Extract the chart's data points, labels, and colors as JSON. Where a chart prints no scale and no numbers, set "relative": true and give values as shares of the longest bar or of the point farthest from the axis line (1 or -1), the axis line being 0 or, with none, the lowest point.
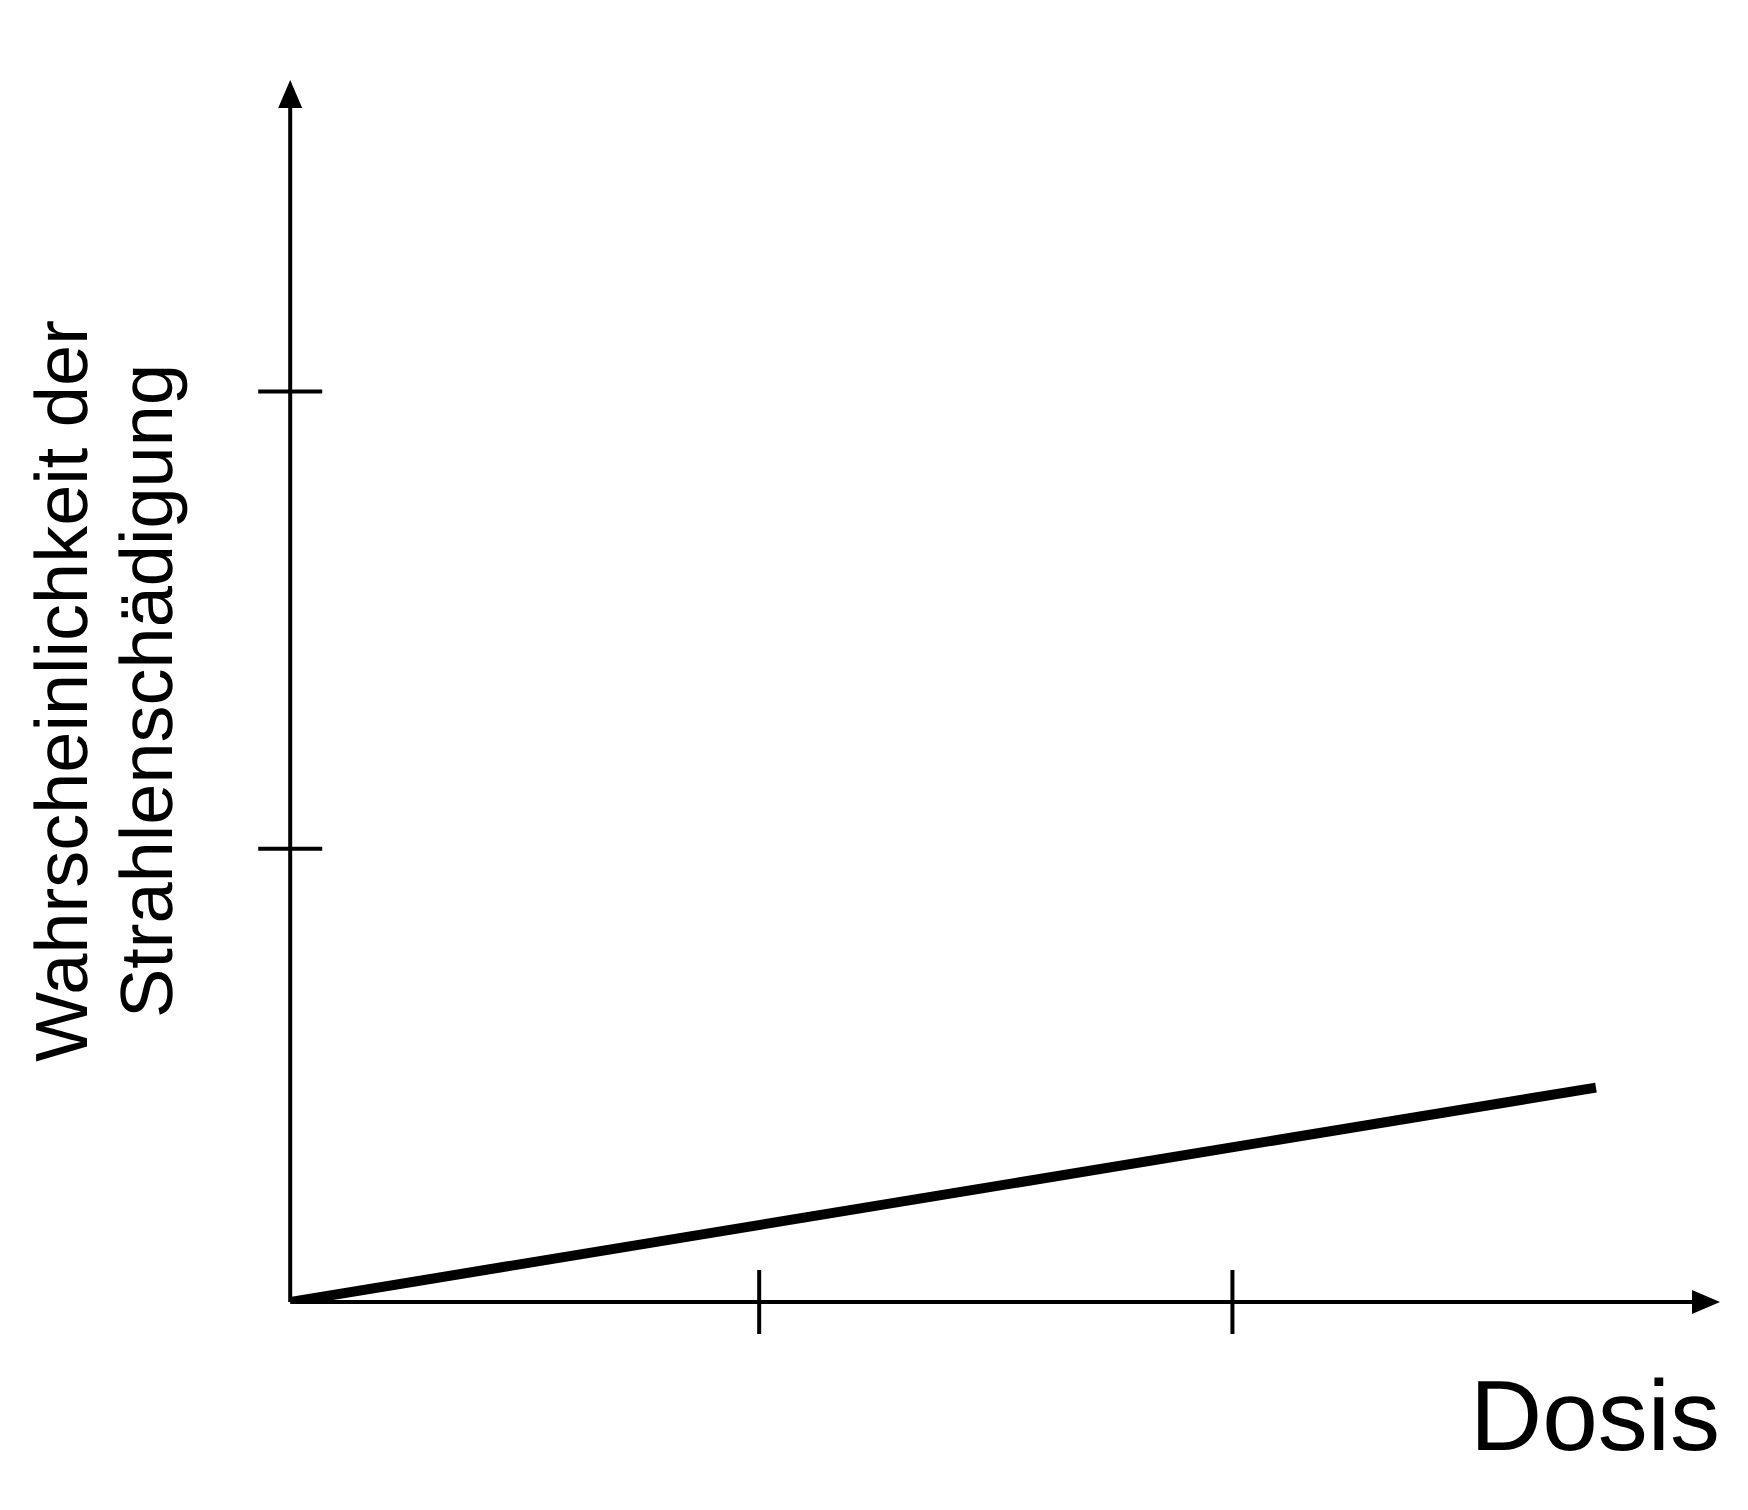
{
  "chart_data": {
    "type": "line",
    "xlabel": "Dosis",
    "ylabel": "Wahrscheinlichkeit der Strahlenschädigung",
    "categories": [
      null,
      null
    ],
    "relative": true,
    "series": [
      {
        "color": "#000000",
        "values": [
          0,
          1
        ]
      }
    ],
    "marker": "none",
    "line_style": "solid",
    "legend": false
  }
}
